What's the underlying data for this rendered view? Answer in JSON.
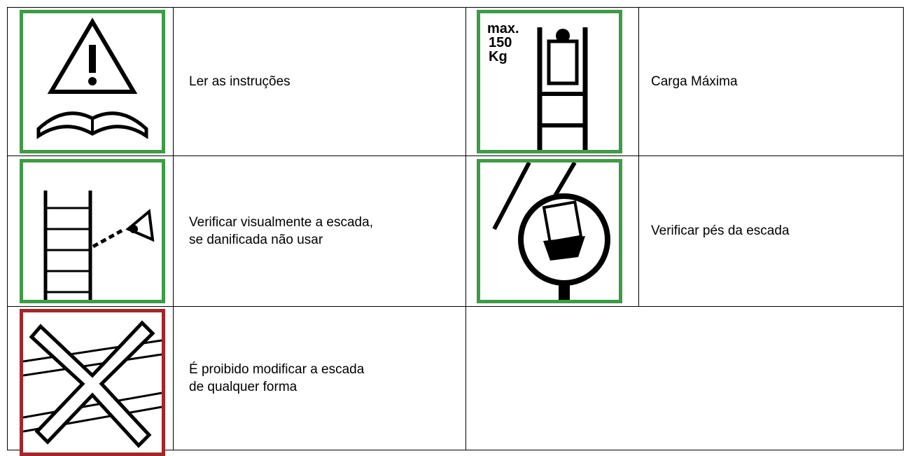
{
  "table": {
    "rows": [
      {
        "cells": [
          {
            "icon": "warning-book",
            "lines": [
              "Ler as instruções"
            ]
          },
          {
            "icon": "max-load",
            "icon_text": [
              "max.",
              "150",
              "Kg"
            ],
            "lines": [
              "Carga Máxima"
            ]
          }
        ]
      },
      {
        "cells": [
          {
            "icon": "inspect-ladder",
            "lines": [
              "Verificar visualmente a escada,",
              "se danificada não usar"
            ]
          },
          {
            "icon": "ladder-feet",
            "lines": [
              "Verificar pés da escada"
            ]
          }
        ]
      },
      {
        "cells": [
          {
            "icon": "no-modify",
            "lines": [
              "É proibido modificar a escada",
              "de qualquer forma"
            ]
          }
        ]
      }
    ]
  }
}
